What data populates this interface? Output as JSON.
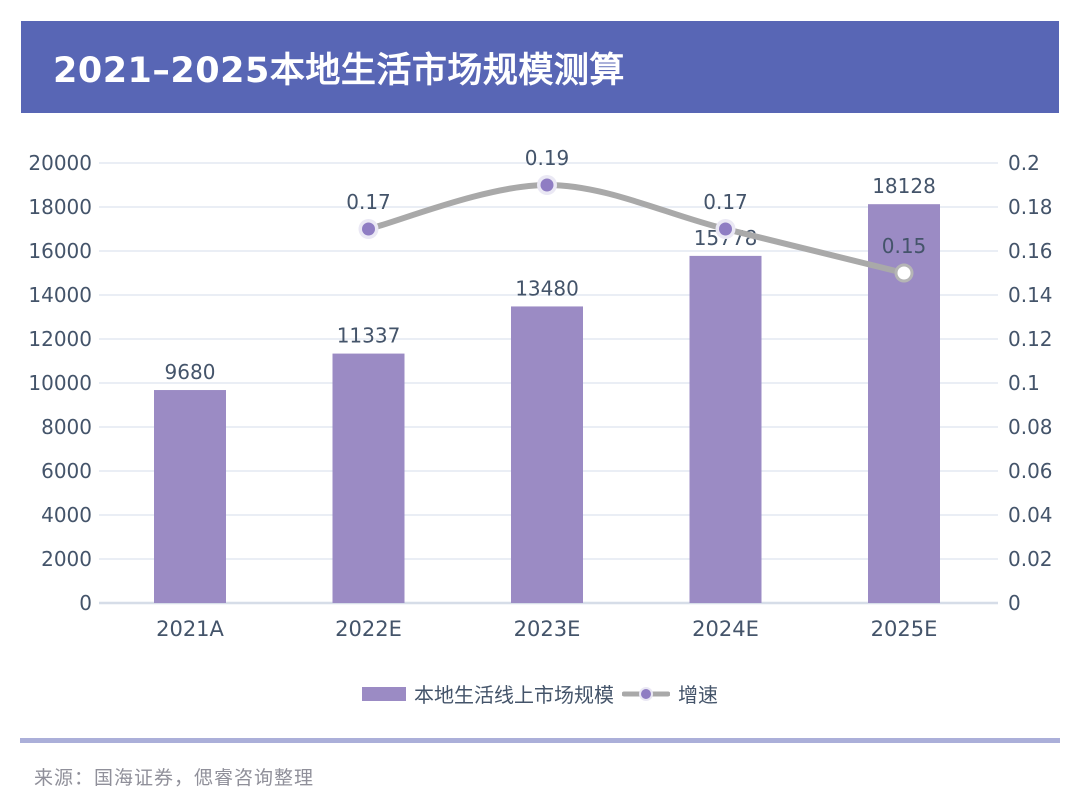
{
  "header": {
    "title": "2021–2025本地生活市场规模测算"
  },
  "footer": {
    "source": "来源：国海证券，偲睿咨询整理"
  },
  "colors": {
    "banner": "#5866B5",
    "bar": "#9B8BC4",
    "line": "#A9A9A9",
    "marker": "#8F7DC3",
    "marker_halo": "#EAE8F4",
    "marker_last_fill": "#FFFFFF",
    "marker_last_stroke": "#B5B5B5",
    "text": "#44546A",
    "grid": "#E3E9F2",
    "axis": "#D6DDE8",
    "divider": "#ABAFD9",
    "footer_text": "#90909A"
  },
  "chart_data": {
    "type": "bar",
    "subtype": "combo-bar-line-dual-axis",
    "title": "2021–2025本地生活市场规模测算",
    "categories": [
      "2021A",
      "2022E",
      "2023E",
      "2024E",
      "2025E"
    ],
    "series": [
      {
        "name": "本地生活线上市场规模",
        "type": "bar",
        "axis": "left",
        "values": [
          9680,
          11337,
          13480,
          15778,
          18128
        ]
      },
      {
        "name": "增速",
        "type": "line",
        "axis": "right",
        "values": [
          null,
          0.17,
          0.19,
          0.17,
          0.15
        ],
        "last_marker": "open-circle"
      }
    ],
    "left_axis": {
      "min": 0,
      "max": 20000,
      "step": 2000
    },
    "right_axis": {
      "min": 0,
      "max": 0.2,
      "step": 0.02
    },
    "grid": true,
    "legend_position": "bottom"
  }
}
